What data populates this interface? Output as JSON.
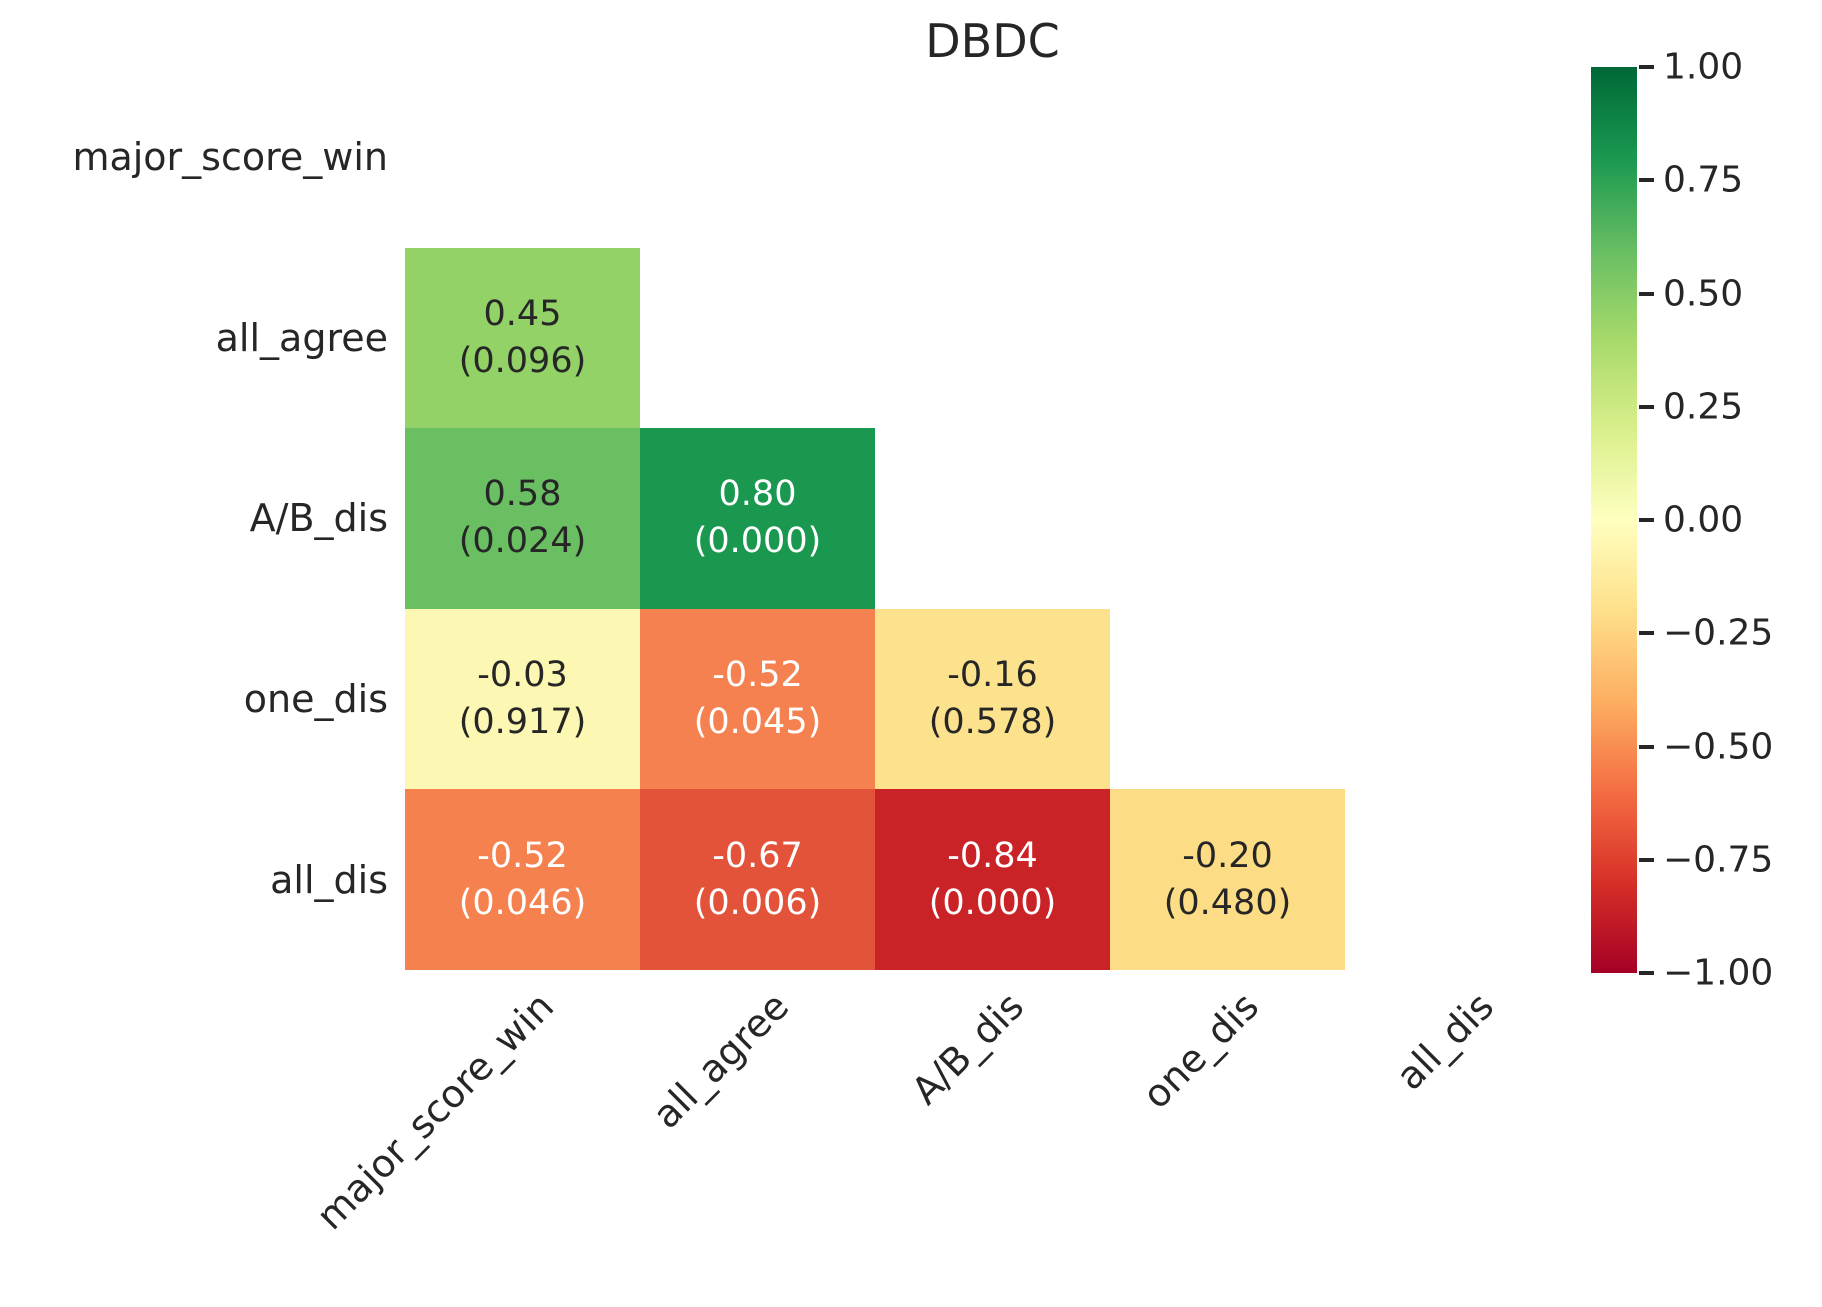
{
  "title": "DBDC",
  "text_color": "#262626",
  "chart_data": {
    "type": "heatmap",
    "title": "DBDC",
    "colormap": "RdYlGn",
    "mask": "upper triangle and diagonal hidden",
    "categories": [
      "major_score_win",
      "all_agree",
      "A/B_dis",
      "one_dis",
      "all_dis"
    ],
    "cell_value_format": "correlation with p-value in parentheses",
    "cells": [
      {
        "r": 1,
        "c": 0,
        "row": "all_agree",
        "col": "major_score_win",
        "corr": 0.45,
        "pval": 0.096,
        "label": "0.45",
        "p_label": "(0.096)",
        "bg": "#92d266",
        "fg": "#262626"
      },
      {
        "r": 2,
        "c": 0,
        "row": "A/B_dis",
        "col": "major_score_win",
        "corr": 0.58,
        "pval": 0.024,
        "label": "0.58",
        "p_label": "(0.024)",
        "bg": "#6abf63",
        "fg": "#262626"
      },
      {
        "r": 2,
        "c": 1,
        "row": "A/B_dis",
        "col": "all_agree",
        "corr": 0.8,
        "pval": 0.0,
        "label": "0.80",
        "p_label": "(0.000)",
        "bg": "#1a9850",
        "fg": "#ffffff"
      },
      {
        "r": 3,
        "c": 0,
        "row": "one_dis",
        "col": "major_score_win",
        "corr": -0.03,
        "pval": 0.917,
        "label": "-0.03",
        "p_label": "(0.917)",
        "bg": "#fcf7b2",
        "fg": "#262626"
      },
      {
        "r": 3,
        "c": 1,
        "row": "one_dis",
        "col": "all_agree",
        "corr": -0.52,
        "pval": 0.045,
        "label": "-0.52",
        "p_label": "(0.045)",
        "bg": "#f58150",
        "fg": "#ffffff"
      },
      {
        "r": 3,
        "c": 2,
        "row": "one_dis",
        "col": "A/B_dis",
        "corr": -0.16,
        "pval": 0.578,
        "label": "-0.16",
        "p_label": "(0.578)",
        "bg": "#fde28d",
        "fg": "#262626"
      },
      {
        "r": 4,
        "c": 0,
        "row": "all_dis",
        "col": "major_score_win",
        "corr": -0.52,
        "pval": 0.046,
        "label": "-0.52",
        "p_label": "(0.046)",
        "bg": "#f5814f",
        "fg": "#ffffff"
      },
      {
        "r": 4,
        "c": 1,
        "row": "all_dis",
        "col": "all_agree",
        "corr": -0.67,
        "pval": 0.006,
        "label": "-0.67",
        "p_label": "(0.006)",
        "bg": "#e2533a",
        "fg": "#ffffff"
      },
      {
        "r": 4,
        "c": 2,
        "row": "all_dis",
        "col": "A/B_dis",
        "corr": -0.84,
        "pval": 0.0,
        "label": "-0.84",
        "p_label": "(0.000)",
        "bg": "#c92227",
        "fg": "#ffffff"
      },
      {
        "r": 4,
        "c": 3,
        "row": "all_dis",
        "col": "one_dis",
        "corr": -0.2,
        "pval": 0.48,
        "label": "-0.20",
        "p_label": "(0.480)",
        "bg": "#fcdd85",
        "fg": "#262626"
      }
    ],
    "colorbar": {
      "vmin": -1.0,
      "vmax": 1.0,
      "tick_labels": [
        "1.00",
        "0.75",
        "0.50",
        "0.25",
        "0.00",
        "−0.25",
        "−0.50",
        "−0.75",
        "−1.00"
      ],
      "gradient_stops_top_to_bottom": [
        "#006837",
        "#1a9850",
        "#66bd63",
        "#a6d96a",
        "#d9ef8b",
        "#ffffbf",
        "#fee08b",
        "#fdae61",
        "#f46d43",
        "#d73027",
        "#a50026"
      ]
    }
  }
}
